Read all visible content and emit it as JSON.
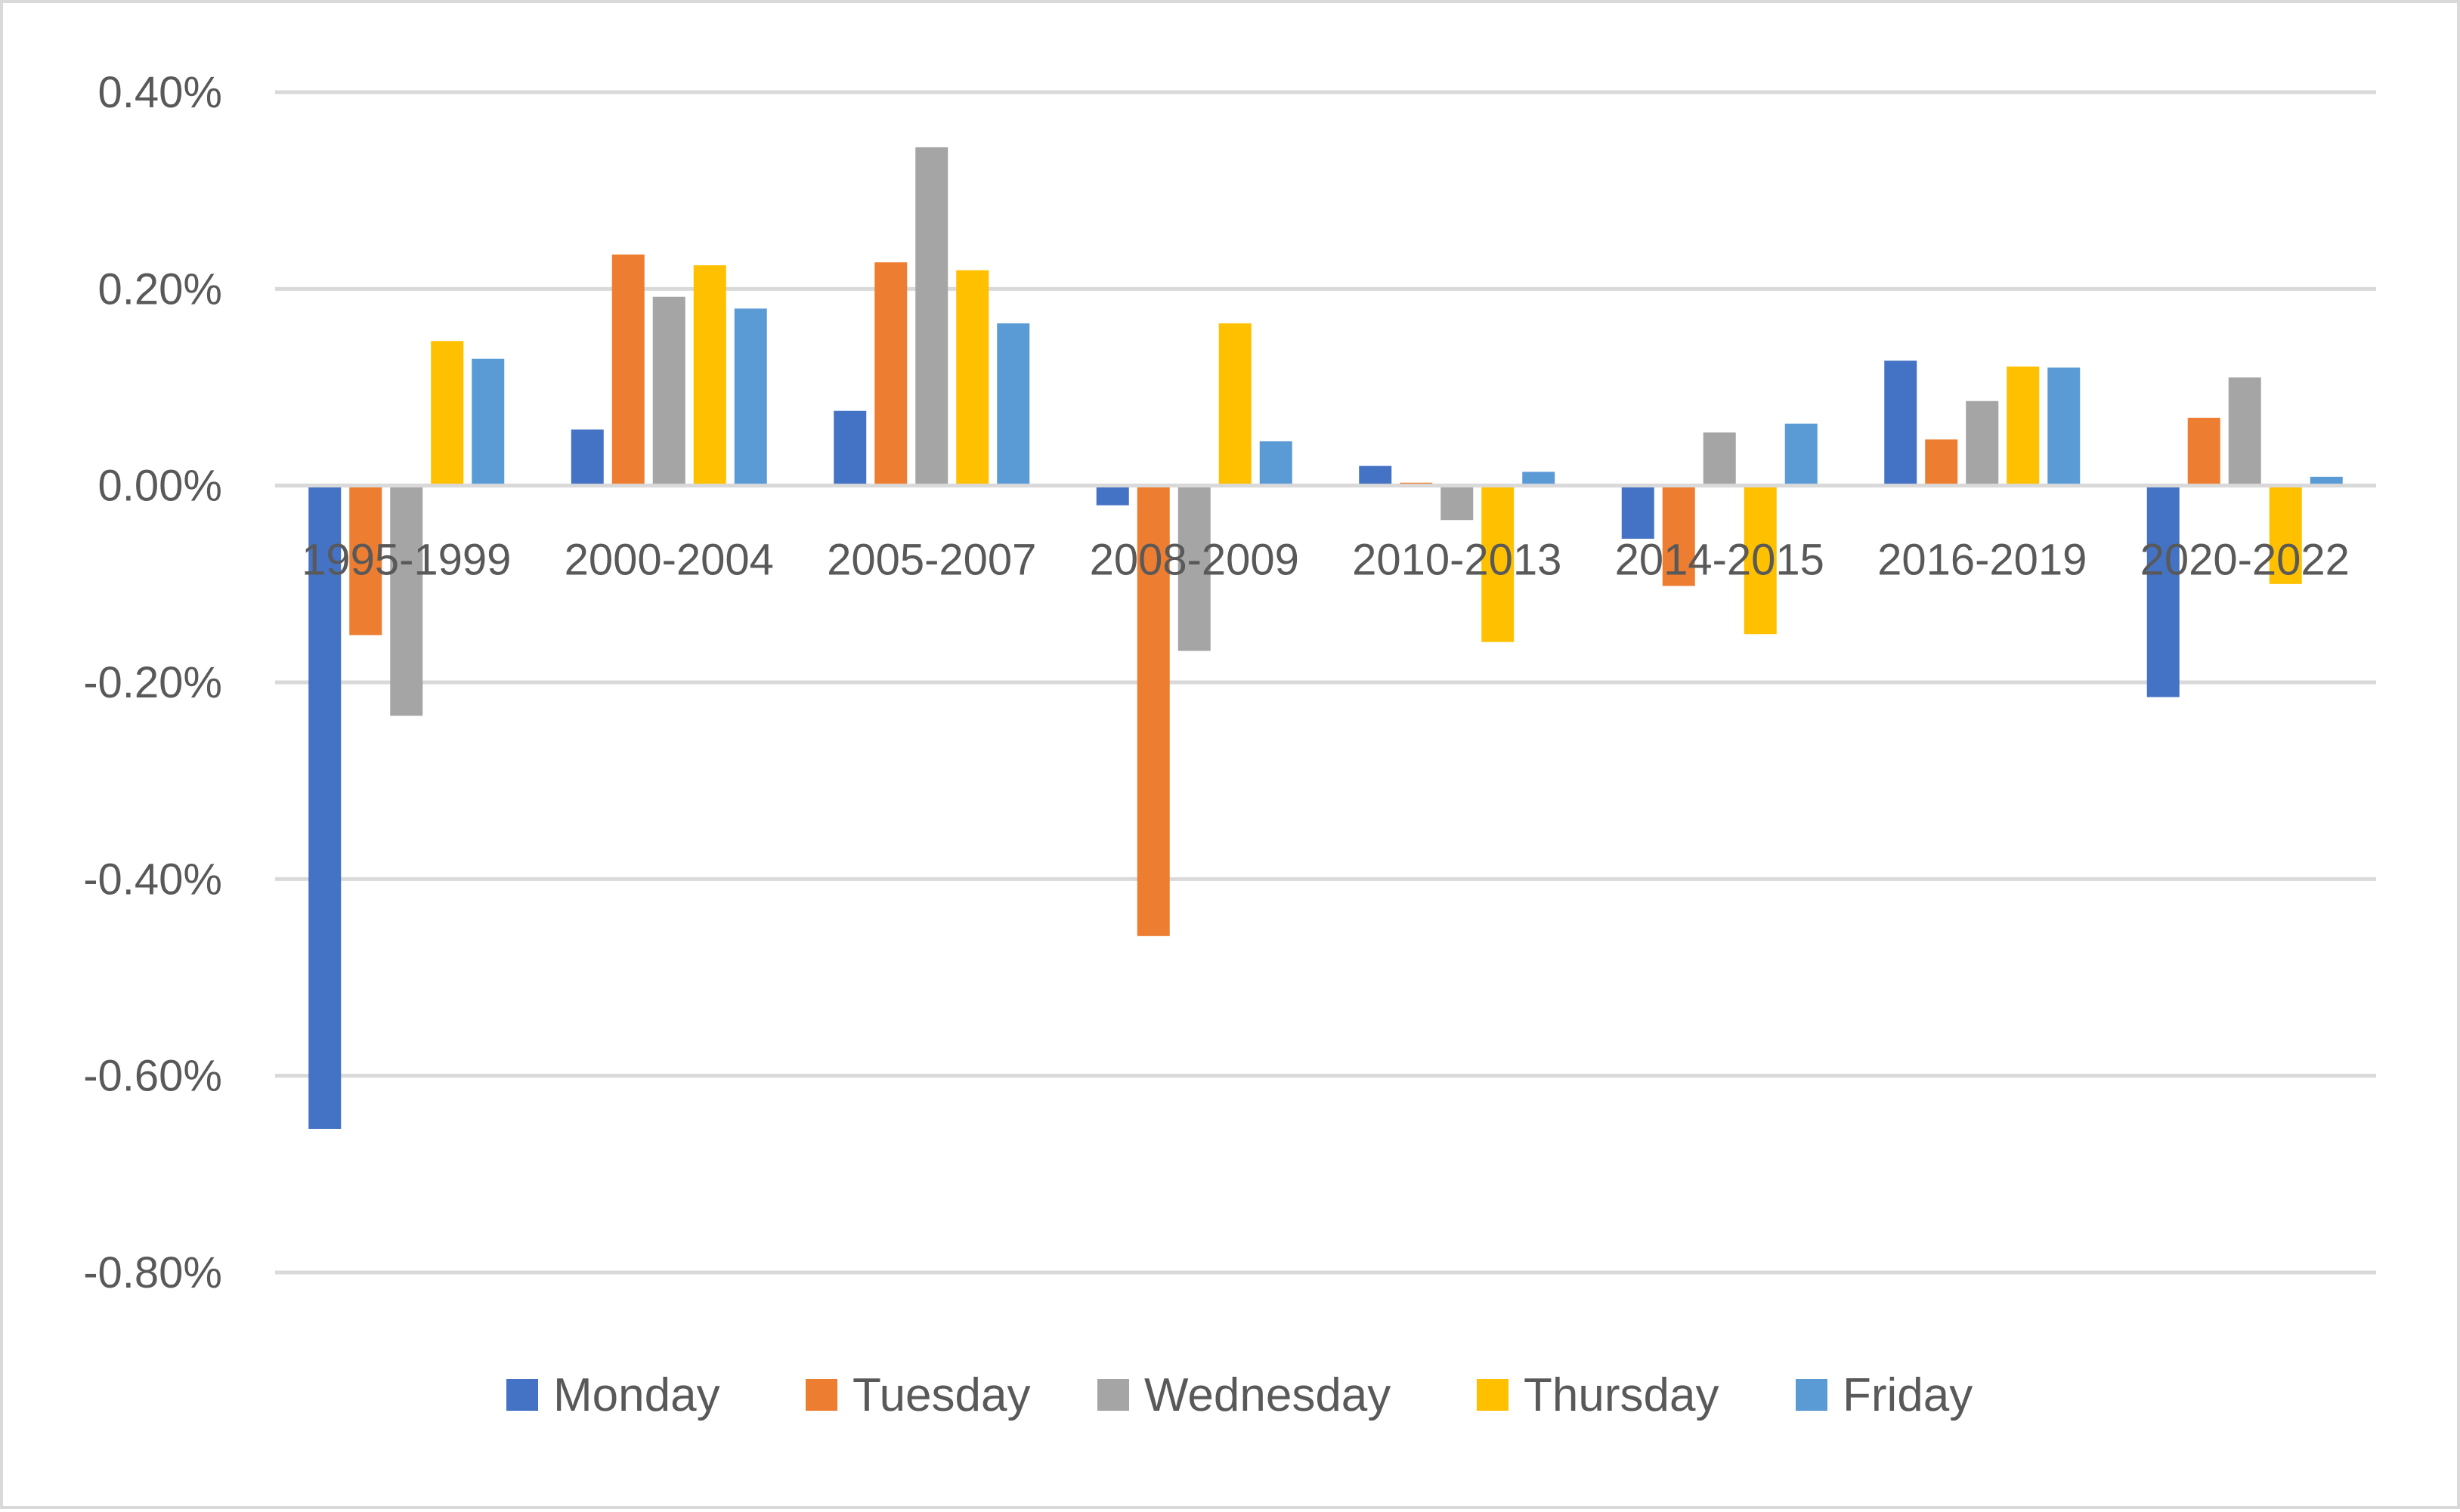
{
  "chart_data": {
    "type": "bar",
    "title": "",
    "xlabel": "",
    "ylabel": "",
    "categories": [
      "1995-1999",
      "2000-2004",
      "2005-2007",
      "2008-2009",
      "2010-2013",
      "2014-2015",
      "2016-2019",
      "2020-2022"
    ],
    "series": [
      {
        "name": "Monday",
        "color": "#4472C4",
        "values": [
          -0.654,
          0.057,
          0.076,
          -0.02,
          0.02,
          -0.054,
          0.127,
          -0.215
        ]
      },
      {
        "name": "Tuesday",
        "color": "#ED7D31",
        "values": [
          -0.152,
          0.235,
          0.227,
          -0.458,
          0.003,
          -0.102,
          0.047,
          0.069
        ]
      },
      {
        "name": "Wednesday",
        "color": "#A5A5A5",
        "values": [
          -0.234,
          0.192,
          0.344,
          -0.168,
          -0.035,
          0.054,
          0.086,
          0.11
        ]
      },
      {
        "name": "Thursday",
        "color": "#FFC000",
        "values": [
          0.147,
          0.224,
          0.219,
          0.165,
          -0.159,
          -0.151,
          0.121,
          -0.1
        ]
      },
      {
        "name": "Friday",
        "color": "#5B9BD5",
        "values": [
          0.129,
          0.18,
          0.165,
          0.045,
          0.014,
          0.063,
          0.12,
          0.009
        ]
      }
    ],
    "ylim": [
      -0.8,
      0.4
    ],
    "yticks": [
      0.4,
      0.2,
      0.0,
      -0.2,
      -0.4,
      -0.6,
      -0.8
    ],
    "ytick_labels": [
      "0.40%",
      "0.20%",
      "0.00%",
      "-0.20%",
      "-0.40%",
      "-0.60%",
      "-0.80%"
    ],
    "value_unit": "%",
    "grid": true,
    "legend_position": "bottom"
  }
}
